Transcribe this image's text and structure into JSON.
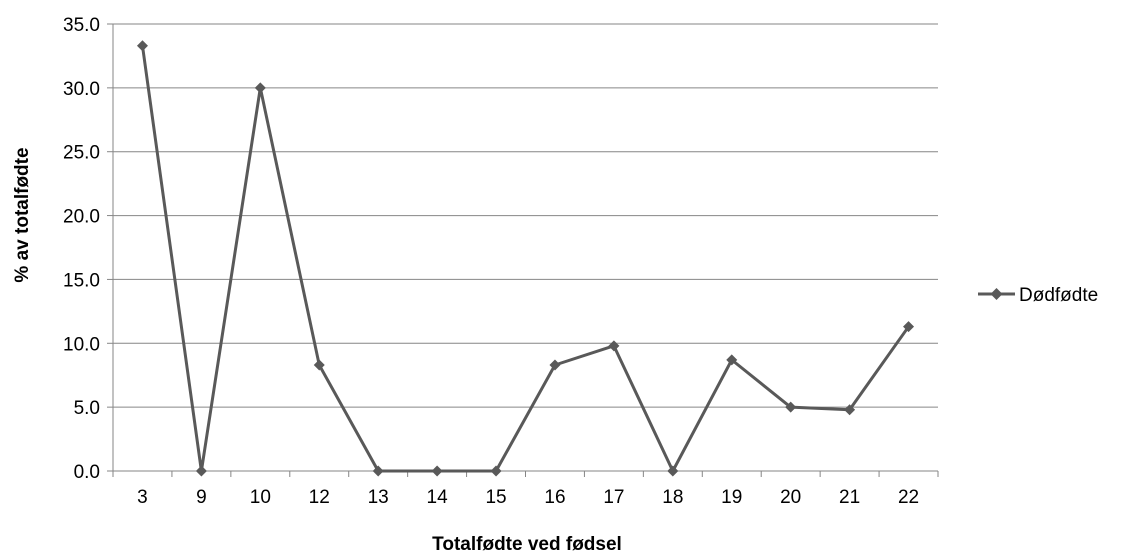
{
  "chart_data": {
    "type": "line",
    "title": "",
    "xlabel": "Totalfødte ved fødsel",
    "ylabel": "% av totalfødte",
    "categories": [
      "3",
      "9",
      "10",
      "12",
      "13",
      "14",
      "15",
      "16",
      "17",
      "18",
      "19",
      "20",
      "21",
      "22"
    ],
    "series": [
      {
        "name": "Dødfødte",
        "values": [
          33.3,
          0.0,
          30.0,
          8.3,
          0.0,
          0.0,
          0.0,
          8.3,
          9.8,
          0.0,
          8.7,
          5.0,
          4.8,
          11.3
        ],
        "color": "#595959",
        "marker": "diamond"
      }
    ],
    "ylim": [
      0,
      35
    ],
    "yticks": [
      "0.0",
      "5.0",
      "10.0",
      "15.0",
      "20.0",
      "25.0",
      "30.0",
      "35.0"
    ],
    "grid": true,
    "legend_position": "right"
  }
}
